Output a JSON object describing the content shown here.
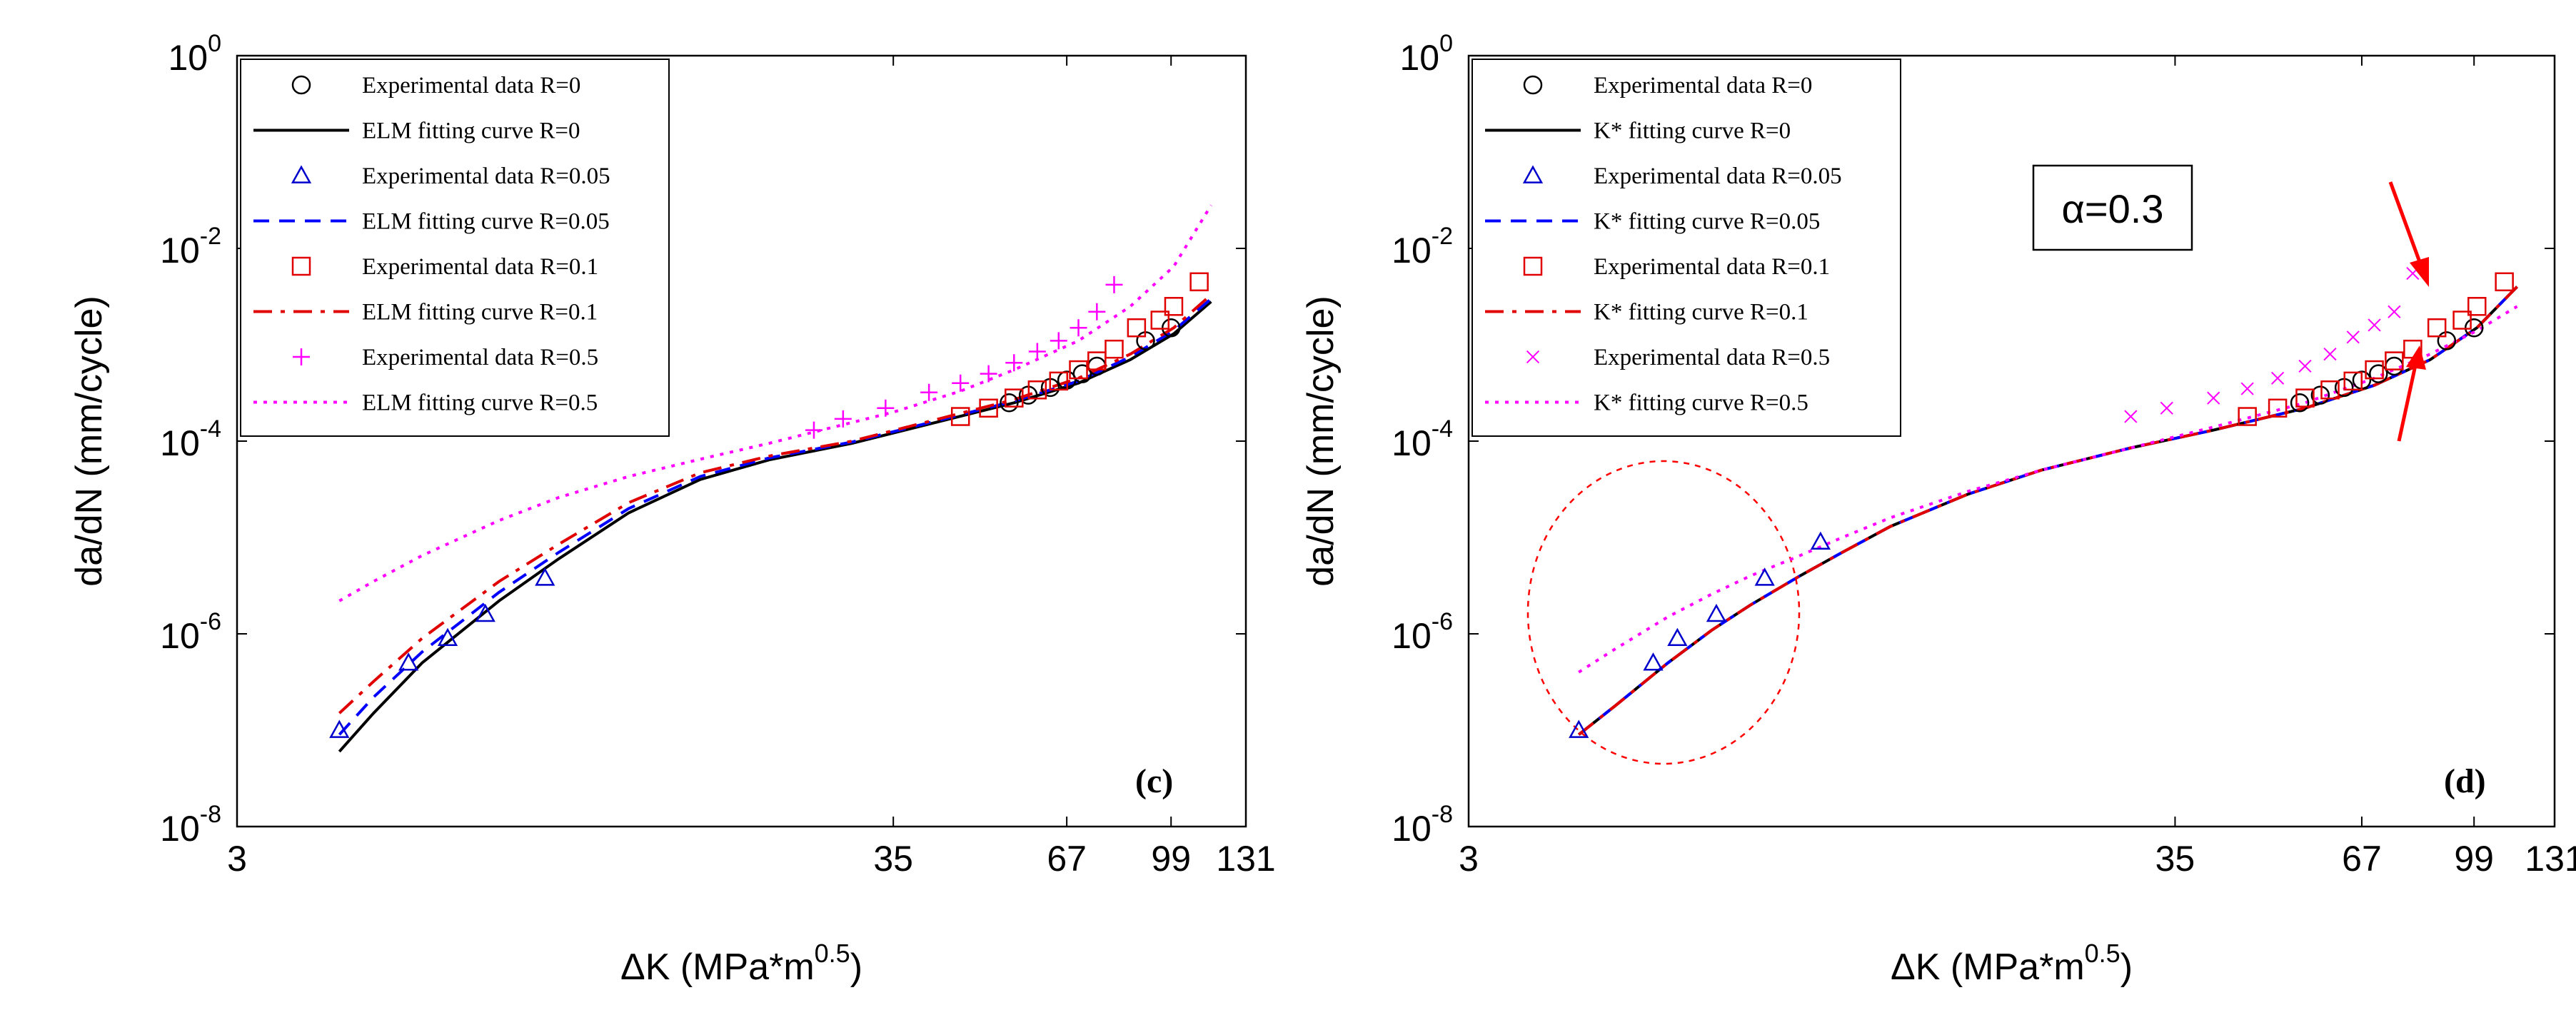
{
  "chart_data": [
    {
      "type": "line",
      "panel_label": "(c)",
      "xlabel": "ΔK (MPa*m",
      "xlabel_sup": "0.5",
      "xlabel_close": ")",
      "ylabel": "da/dN (mm/cycle)",
      "xscale": "log",
      "yscale": "log",
      "xlim": [
        3,
        131
      ],
      "ylim": [
        1e-08,
        1
      ],
      "xticks": [
        3,
        35,
        67,
        99,
        131
      ],
      "xtick_labels": [
        "3",
        "35",
        "67",
        "99",
        "131"
      ],
      "yticks": [
        -8,
        -6,
        -4,
        -2,
        0
      ],
      "ytick_base": "10",
      "ytick_exps": [
        "-8",
        "-6",
        "-4",
        "-2",
        "0"
      ],
      "legend_position": "top-left",
      "series": [
        {
          "name": "Experimental data R=0",
          "kind": "marker",
          "marker": "circle",
          "color": "#000000",
          "x": [
            54,
            58,
            63,
            67,
            71,
            75,
            90,
            99
          ],
          "y": [
            0.00025,
            0.0003,
            0.00036,
            0.00043,
            0.0005,
            0.0006,
            0.0011,
            0.0015
          ]
        },
        {
          "name": "ELM fitting curve R=0",
          "kind": "line",
          "dash": "solid",
          "color": "#000000",
          "x": [
            4.4,
            5,
            6,
            8,
            10,
            13,
            17,
            22,
            30,
            40,
            55,
            70,
            85,
            100,
            115
          ],
          "y": [
            6e-08,
            1.5e-07,
            5e-07,
            2.2e-06,
            6e-06,
            1.8e-05,
            4e-05,
            6.4e-05,
            9.5e-05,
            0.00015,
            0.00025,
            0.0004,
            0.0007,
            0.0013,
            0.0028
          ]
        },
        {
          "name": "Experimental data R=0.05",
          "kind": "marker",
          "marker": "triangle",
          "color": "#0000cc",
          "x": [
            4.4,
            5.7,
            6.6,
            7.6,
            9.5
          ],
          "y": [
            1e-07,
            5e-07,
            9e-07,
            1.6e-06,
            3.8e-06
          ]
        },
        {
          "name": "ELM fitting curve R=0.05",
          "kind": "line",
          "dash": "dashed",
          "color": "#0000ff",
          "x": [
            4.4,
            5,
            6,
            8,
            10,
            13,
            17,
            22,
            30,
            40,
            55,
            70,
            85,
            100,
            115
          ],
          "y": [
            9e-08,
            2.2e-07,
            6.5e-07,
            2.7e-06,
            7e-06,
            2e-05,
            4.3e-05,
            6.7e-05,
            9.8e-05,
            0.000155,
            0.00026,
            0.00042,
            0.00075,
            0.0014,
            0.003
          ]
        },
        {
          "name": "Experimental data R=0.1",
          "kind": "marker",
          "marker": "square",
          "color": "#e00000",
          "x": [
            45,
            50,
            55,
            60,
            65,
            70,
            75,
            80,
            87,
            95,
            100,
            110
          ],
          "y": [
            0.00018,
            0.00022,
            0.00028,
            0.00034,
            0.00042,
            0.00055,
            0.00068,
            0.0009,
            0.0015,
            0.0018,
            0.0025,
            0.0045
          ]
        },
        {
          "name": "ELM fitting curve R=0.1",
          "kind": "line",
          "dash": "dashdot",
          "color": "#e00000",
          "x": [
            4.4,
            5,
            6,
            8,
            10,
            13,
            17,
            22,
            30,
            40,
            55,
            70,
            85,
            100,
            115
          ],
          "y": [
            1.5e-07,
            3.2e-07,
            9e-07,
            3.5e-06,
            8.5e-06,
            2.3e-05,
            4.7e-05,
            7e-05,
            0.0001,
            0.00016,
            0.00027,
            0.00045,
            0.0008,
            0.0015,
            0.0033
          ]
        },
        {
          "name": "Experimental data R=0.5",
          "kind": "marker",
          "marker": "plus",
          "color": "#ff00ff",
          "x": [
            26,
            29,
            34,
            40,
            45,
            50,
            55,
            60,
            65,
            70,
            75,
            80
          ],
          "y": [
            0.00013,
            0.00017,
            0.00022,
            0.00032,
            0.0004,
            0.0005,
            0.00065,
            0.00085,
            0.0011,
            0.0015,
            0.0022,
            0.0042
          ]
        },
        {
          "name": "ELM fitting curve R=0.5",
          "kind": "line",
          "dash": "dotted",
          "color": "#ff00ff",
          "x": [
            4.4,
            5,
            6,
            8,
            10,
            13,
            17,
            22,
            28,
            35,
            45,
            55,
            70,
            85,
            100,
            115
          ],
          "y": [
            2.2e-06,
            3.5e-06,
            6.5e-06,
            1.5e-05,
            2.6e-05,
            4.3e-05,
            6.5e-05,
            9.5e-05,
            0.00014,
            0.0002,
            0.00033,
            0.00055,
            0.0011,
            0.0025,
            0.0065,
            0.028
          ]
        }
      ]
    },
    {
      "type": "line",
      "panel_label": "(d)",
      "annotation": "α=0.3",
      "xlabel": "ΔK (MPa*m",
      "xlabel_sup": "0.5",
      "xlabel_close": ")",
      "ylabel": "da/dN (mm/cycle)",
      "xscale": "log",
      "yscale": "log",
      "xlim": [
        3,
        131
      ],
      "ylim": [
        1e-08,
        1
      ],
      "xticks": [
        3,
        35,
        67,
        99,
        131
      ],
      "xtick_labels": [
        "3",
        "35",
        "67",
        "99",
        "131"
      ],
      "yticks": [
        -8,
        -6,
        -4,
        -2,
        0
      ],
      "ytick_base": "10",
      "ytick_exps": [
        "-8",
        "-6",
        "-4",
        "-2",
        "0"
      ],
      "legend_position": "top-left",
      "series": [
        {
          "name": "Experimental data R=0",
          "kind": "marker",
          "marker": "circle",
          "color": "#000000",
          "x": [
            54,
            58,
            63,
            67,
            71,
            75,
            90,
            99
          ],
          "y": [
            0.00025,
            0.0003,
            0.00036,
            0.00043,
            0.0005,
            0.0006,
            0.0011,
            0.0015
          ]
        },
        {
          "name": "K* fitting curve R=0",
          "kind": "line",
          "dash": "solid",
          "color": "#000000",
          "x": [
            4.4,
            5,
            6,
            7,
            8,
            9.5,
            11,
            13,
            17,
            22,
            30,
            40,
            55,
            70,
            85,
            100,
            115
          ],
          "y": [
            9e-08,
            1.8e-07,
            5e-07,
            1.1e-06,
            2e-06,
            4e-06,
            7e-06,
            1.3e-05,
            2.8e-05,
            5e-05,
            8.5e-05,
            0.00013,
            0.00022,
            0.00038,
            0.0007,
            0.0015,
            0.004
          ]
        },
        {
          "name": "Experimental data R=0.05",
          "kind": "marker",
          "marker": "triangle",
          "color": "#0000cc",
          "x": [
            4.4,
            5.7,
            6.2,
            7.1,
            8.4,
            10.2
          ],
          "y": [
            1e-07,
            5e-07,
            9e-07,
            1.6e-06,
            3.8e-06,
            9e-06
          ]
        },
        {
          "name": "K* fitting curve R=0.05",
          "kind": "line",
          "dash": "dashed",
          "color": "#0000ff",
          "x": [
            4.4,
            5,
            6,
            7,
            8,
            9.5,
            11,
            13,
            17,
            22,
            30,
            40,
            55,
            70,
            85,
            100,
            115
          ],
          "y": [
            9e-08,
            1.8e-07,
            5e-07,
            1.1e-06,
            2e-06,
            4e-06,
            7e-06,
            1.3e-05,
            2.8e-05,
            5e-05,
            8.5e-05,
            0.00013,
            0.00022,
            0.00038,
            0.0007,
            0.0015,
            0.004
          ]
        },
        {
          "name": "Experimental data R=0.1",
          "kind": "marker",
          "marker": "square",
          "color": "#e00000",
          "x": [
            45,
            50,
            55,
            60,
            65,
            70,
            75,
            80,
            87,
            95,
            100,
            110
          ],
          "y": [
            0.00018,
            0.00022,
            0.00028,
            0.00034,
            0.00042,
            0.00055,
            0.00068,
            0.0009,
            0.0015,
            0.0018,
            0.0025,
            0.0045
          ]
        },
        {
          "name": "K* fitting curve R=0.1",
          "kind": "line",
          "dash": "dashdot",
          "color": "#e00000",
          "x": [
            4.4,
            5,
            6,
            7,
            8,
            9.5,
            11,
            13,
            17,
            22,
            30,
            40,
            55,
            70,
            85,
            100,
            115
          ],
          "y": [
            9e-08,
            1.8e-07,
            5e-07,
            1.1e-06,
            2e-06,
            4e-06,
            7e-06,
            1.3e-05,
            2.8e-05,
            5e-05,
            8.5e-05,
            0.00013,
            0.00022,
            0.00038,
            0.0007,
            0.0015,
            0.004
          ]
        },
        {
          "name": "Experimental data R=0.5",
          "kind": "marker",
          "marker": "x",
          "color": "#ff00ff",
          "x": [
            30,
            34,
            40,
            45,
            50,
            55,
            60,
            65,
            70,
            75,
            80
          ],
          "y": [
            0.00018,
            0.00022,
            0.00028,
            0.00035,
            0.00045,
            0.0006,
            0.0008,
            0.0012,
            0.0016,
            0.0022,
            0.0055
          ]
        },
        {
          "name": "K* fitting curve R=0.5",
          "kind": "line",
          "dash": "dotted",
          "color": "#ff00ff",
          "x": [
            4.4,
            5,
            6,
            7,
            8,
            9.5,
            11,
            13,
            17,
            22,
            30,
            40,
            55,
            70,
            85,
            100,
            115
          ],
          "y": [
            4e-07,
            7e-07,
            1.5e-06,
            2.6e-06,
            4e-06,
            6.5e-06,
            1e-05,
            1.6e-05,
            3e-05,
            5e-05,
            8.5e-05,
            0.00014,
            0.00025,
            0.00045,
            0.0008,
            0.0014,
            0.0025
          ]
        }
      ]
    }
  ],
  "colors": {
    "axis": "#000000",
    "circle_annotation": "#ff0000",
    "arrow": "#ff0000"
  },
  "icons": [
    "circle-marker-icon",
    "triangle-marker-icon",
    "square-marker-icon",
    "plus-marker-icon",
    "x-marker-icon"
  ]
}
